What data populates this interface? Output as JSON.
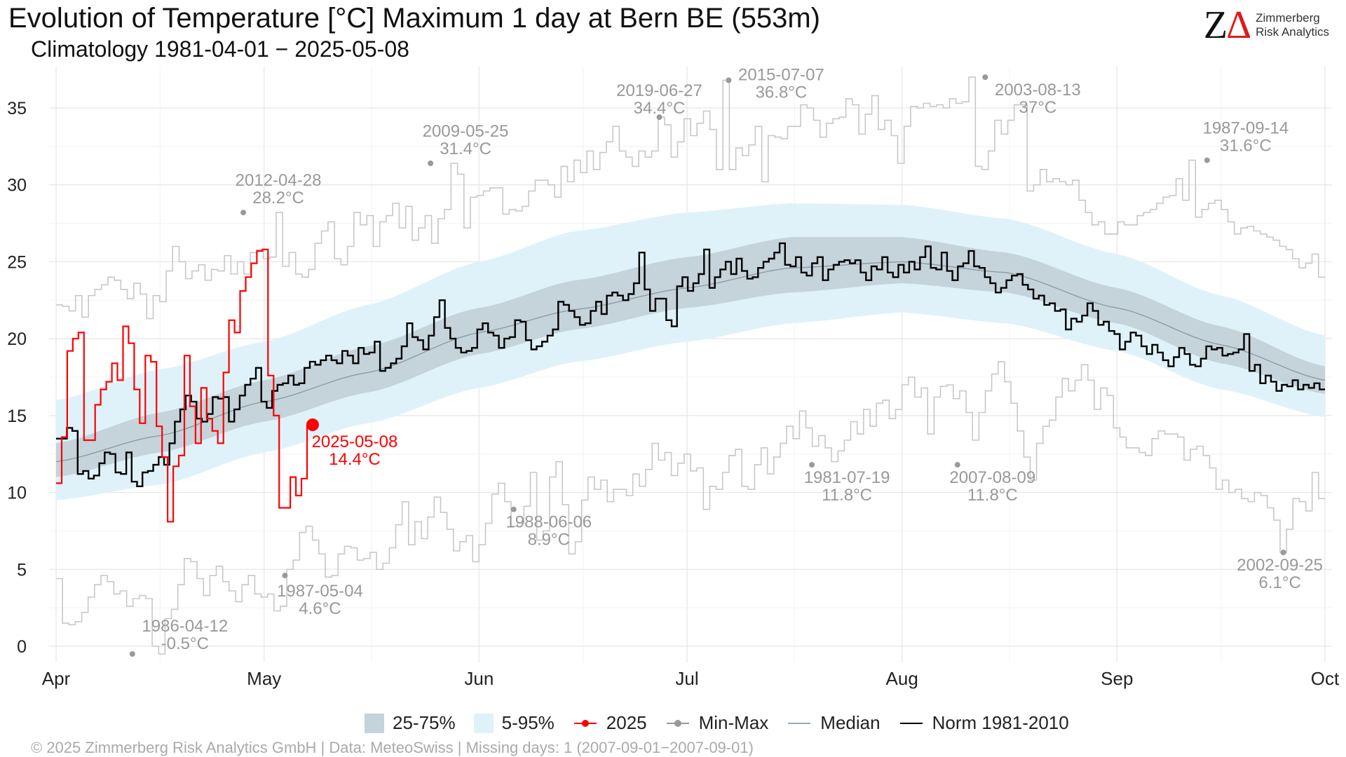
{
  "title": "Evolution of Temperature [°C] Maximum 1 day at Bern  BE (553m)",
  "subtitle": "Climatology 1981-04-01 − 2025-05-08",
  "logo": {
    "mark": "ZΔ",
    "line1": "Zimmerberg",
    "line2": "Risk Analytics"
  },
  "footer": "©  2025 Zimmerberg Risk Analytics GmbH | Data: MeteoSwiss | Missing days: 1 (2007-09-01−2007-09-01)",
  "legend": [
    {
      "label": "25-75%",
      "kind": "band",
      "color": "#c5d3da"
    },
    {
      "label": "5-95%",
      "kind": "band",
      "color": "#dff2f9"
    },
    {
      "label": "2025",
      "kind": "pointline",
      "color": "#ff0000"
    },
    {
      "label": "Min-Max",
      "kind": "pointline",
      "color": "#999999"
    },
    {
      "label": "Median",
      "kind": "line",
      "color": "#9aaab3"
    },
    {
      "label": "Norm 1981-2010",
      "kind": "line",
      "color": "#000000"
    }
  ],
  "colors": {
    "band_iqr": "#c5d3da",
    "band_90": "#dff2f9",
    "current": "#ff0000",
    "minmax": "#c8c8c8",
    "annot": "#999999",
    "norm": "#000000",
    "median": "#8c9ca4"
  },
  "chart_data": {
    "type": "line",
    "x_axis": {
      "ticks": [
        "Apr",
        "May",
        "Jun",
        "Jul",
        "Aug",
        "Sep",
        "Oct"
      ],
      "range": [
        "1981-04-01",
        "1981-10-01"
      ]
    },
    "y_axis": {
      "ticks": [
        0,
        5,
        10,
        15,
        20,
        25,
        30,
        35
      ],
      "ylim": [
        -1,
        37.5
      ]
    },
    "grid": true,
    "legend_position": "bottom",
    "median": [
      [
        0,
        12.0
      ],
      [
        15,
        13.7
      ],
      [
        30,
        15.9
      ],
      [
        45,
        17.8
      ],
      [
        61,
        20.4
      ],
      [
        75,
        21.9
      ],
      [
        91,
        23.3
      ],
      [
        106,
        24.6
      ],
      [
        122,
        25.0
      ],
      [
        137,
        24.3
      ],
      [
        153,
        22.0
      ],
      [
        168,
        19.6
      ],
      [
        183,
        17.3
      ]
    ],
    "band_25_75": {
      "upper": [
        [
          0,
          13.2
        ],
        [
          15,
          15.2
        ],
        [
          30,
          17.3
        ],
        [
          45,
          19.5
        ],
        [
          61,
          22.0
        ],
        [
          75,
          23.8
        ],
        [
          91,
          25.3
        ],
        [
          106,
          26.6
        ],
        [
          122,
          26.6
        ],
        [
          137,
          25.6
        ],
        [
          153,
          23.3
        ],
        [
          168,
          20.8
        ],
        [
          183,
          18.2
        ]
      ],
      "lower": [
        [
          0,
          11.0
        ],
        [
          15,
          12.6
        ],
        [
          30,
          14.6
        ],
        [
          45,
          16.5
        ],
        [
          61,
          19.0
        ],
        [
          75,
          20.6
        ],
        [
          91,
          22.0
        ],
        [
          106,
          23.0
        ],
        [
          122,
          23.6
        ],
        [
          137,
          23.0
        ],
        [
          153,
          21.0
        ],
        [
          168,
          18.4
        ],
        [
          183,
          16.4
        ]
      ]
    },
    "band_5_95": {
      "upper": [
        [
          0,
          16.0
        ],
        [
          15,
          18.0
        ],
        [
          30,
          19.8
        ],
        [
          45,
          22.2
        ],
        [
          61,
          25.0
        ],
        [
          75,
          27.0
        ],
        [
          91,
          28.2
        ],
        [
          106,
          28.8
        ],
        [
          122,
          28.7
        ],
        [
          137,
          27.8
        ],
        [
          153,
          25.5
        ],
        [
          168,
          22.8
        ],
        [
          183,
          20.2
        ]
      ],
      "lower": [
        [
          0,
          9.5
        ],
        [
          15,
          10.5
        ],
        [
          30,
          12.6
        ],
        [
          45,
          14.5
        ],
        [
          61,
          16.8
        ],
        [
          75,
          18.5
        ],
        [
          91,
          19.8
        ],
        [
          106,
          21.0
        ],
        [
          122,
          21.7
        ],
        [
          137,
          21.0
        ],
        [
          153,
          19.2
        ],
        [
          168,
          16.7
        ],
        [
          183,
          14.9
        ]
      ]
    },
    "series": [
      {
        "name": "2025",
        "values": [
          10.6,
          13.6,
          19.2,
          20.0,
          20.4,
          13.4,
          13.4,
          15.7,
          16.7,
          17.2,
          18.4,
          17.3,
          20.8,
          19.7,
          16.7,
          14.5,
          18.9,
          18.5,
          14.3,
          12.3,
          8.1,
          11.7,
          12.4,
          18.9,
          15.6,
          13.2,
          16.8,
          14.8,
          14.0,
          13.2,
          17.8,
          21.2,
          20.4,
          23.1,
          24.0,
          24.9,
          25.7,
          25.8,
          17.6,
          15.0,
          9.0,
          9.0,
          11.0,
          9.8,
          10.9,
          14.4
        ]
      },
      {
        "name": "Norm 1981-2010",
        "values": [
          13.5,
          13.5,
          14.2,
          14.0,
          11.2,
          11.4,
          10.9,
          11.1,
          11.9,
          12.6,
          12.5,
          11.3,
          11.2,
          12.6,
          10.7,
          10.4,
          11.3,
          11.4,
          11.8,
          12.3,
          11.8,
          13.2,
          14.6,
          15.4,
          16.3,
          15.9,
          14.8,
          14.6,
          15.1,
          16.2,
          16.1,
          16.2,
          14.6,
          15.4,
          16.3,
          17.0,
          17.4,
          18.1,
          15.9,
          15.5,
          16.6,
          17.0,
          17.1,
          17.6,
          17.0,
          17.1,
          18.1,
          18.5,
          18.3,
          18.6,
          18.9,
          18.6,
          18.4,
          19.2,
          18.9,
          18.4,
          19.4,
          19.0,
          19.1,
          19.8,
          17.9,
          18.1,
          18.4,
          18.7,
          19.5,
          21.0,
          20.1,
          19.9,
          19.3,
          20.2,
          21.4,
          22.5,
          20.7,
          20.0,
          19.4,
          19.1,
          19.2,
          19.4,
          20.6,
          21.0,
          20.4,
          20.2,
          19.4,
          20.0,
          20.1,
          21.2,
          21.1,
          19.9,
          19.3,
          19.5,
          19.8,
          20.2,
          20.6,
          22.4,
          22.2,
          21.8,
          21.4,
          20.9,
          21.0,
          21.8,
          22.4,
          21.6,
          22.8,
          23.0,
          22.8,
          22.5,
          22.9,
          23.6,
          25.6,
          23.2,
          21.8,
          22.6,
          22.6,
          21.2,
          20.8,
          23.4,
          24.0,
          23.1,
          23.6,
          24.2,
          25.8,
          23.3,
          24.0,
          24.5,
          25.0,
          24.2,
          25.2,
          24.4,
          23.9,
          24.0,
          24.6,
          25.0,
          25.2,
          25.6,
          26.2,
          24.8,
          24.7,
          25.3,
          24.3,
          24.1,
          24.9,
          25.3,
          23.8,
          24.5,
          24.8,
          25.0,
          25.1,
          24.9,
          25.1,
          24.3,
          23.8,
          24.7,
          24.5,
          25.3,
          24.3,
          24.0,
          24.8,
          24.3,
          25.0,
          24.5,
          25.3,
          26.0,
          24.6,
          24.5,
          25.6,
          24.4,
          23.8,
          24.7,
          24.9,
          25.7,
          24.7,
          24.6,
          24.0,
          23.6,
          23.0,
          23.3,
          23.8,
          24.1,
          24.2,
          23.5,
          23.2,
          22.6,
          22.8,
          22.2,
          22.3,
          21.8,
          21.9,
          20.6,
          21.3,
          21.1,
          21.5,
          22.3,
          21.8,
          20.9,
          21.1,
          20.5,
          20.3,
          19.3,
          19.8,
          20.4,
          20.2,
          19.5,
          19.0,
          19.6,
          19.1,
          18.6,
          18.2,
          18.8,
          19.4,
          19.0,
          18.3,
          18.2,
          18.7,
          19.5,
          19.3,
          19.4,
          18.9,
          19.0,
          19.1,
          19.3,
          20.3,
          17.9,
          18.3,
          17.1,
          17.6,
          17.2,
          16.6,
          17.0,
          16.9,
          17.3,
          16.7,
          17.0,
          16.8,
          17.1,
          16.7
        ]
      },
      {
        "name": "Max",
        "values": [
          22.2,
          22.1,
          21.8,
          22.8,
          21.4,
          22.8,
          23.2,
          23.5,
          24.0,
          23.8,
          23.2,
          22.6,
          23.6,
          22.9,
          21.3,
          22.8,
          22.4,
          24.4,
          26.0,
          25.0,
          23.9,
          24.4,
          24.8,
          23.8,
          24.5,
          24.4,
          25.4,
          24.2,
          25.0,
          24.2,
          25.6,
          25.8,
          25.2,
          25.3,
          28.2,
          24.7,
          25.6,
          24.2,
          24.0,
          24.5,
          26.2,
          27.0,
          27.6,
          25.2,
          24.8,
          26.0,
          28.2,
          27.4,
          28.0,
          26.0,
          27.6,
          28.0,
          28.8,
          27.2,
          28.6,
          26.4,
          27.2,
          28.0,
          26.2,
          27.8,
          28.4,
          31.4,
          30.7,
          27.2,
          29.2,
          29.3,
          29.6,
          29.8,
          29.8,
          28.1,
          28.4,
          28.3,
          28.6,
          29.6,
          30.3,
          30.3,
          30.0,
          29.2,
          31.2,
          30.2,
          31.6,
          30.8,
          32.2,
          31.0,
          32.1,
          32.8,
          33.8,
          32.2,
          31.8,
          31.2,
          32.2,
          31.8,
          32.2,
          34.4,
          33.9,
          31.8,
          32.8,
          34.3,
          33.2,
          34.0,
          34.8,
          33.6,
          31.0,
          36.8,
          31.0,
          32.4,
          31.9,
          32.6,
          33.8,
          30.2,
          33.2,
          33.1,
          33.0,
          33.8,
          33.8,
          35.2,
          35.0,
          34.2,
          33.1,
          34.0,
          34.3,
          34.4,
          35.6,
          35.2,
          33.3,
          34.6,
          35.8,
          33.6,
          34.2,
          33.2,
          31.4,
          33.8,
          35.1,
          35.0,
          35.3,
          35.1,
          35.2,
          35.0,
          35.6,
          35.3,
          35.4,
          37.0,
          31.2,
          31.0,
          32.2,
          34.2,
          33.3,
          34.2,
          35.2,
          35.2,
          29.6,
          30.0,
          31.0,
          30.2,
          30.4,
          30.2,
          30.0,
          30.3,
          29.0,
          28.2,
          27.4,
          27.6,
          26.8,
          26.8,
          27.6,
          27.4,
          27.4,
          28.0,
          28.2,
          28.4,
          28.8,
          29.2,
          29.3,
          30.4,
          29.0,
          31.6,
          27.9,
          28.4,
          28.8,
          29.0,
          28.4,
          27.6,
          26.8,
          27.2,
          27.3,
          27.0,
          26.8,
          26.6,
          26.4,
          26.0,
          25.8,
          25.2,
          24.6,
          24.9,
          25.5,
          24.0
        ]
      },
      {
        "name": "Min",
        "values": [
          4.4,
          1.5,
          1.4,
          1.6,
          2.2,
          3.2,
          4.0,
          4.6,
          4.2,
          3.4,
          3.6,
          2.6,
          3.1,
          3.3,
          3.1,
          0.0,
          -0.5,
          1.8,
          2.4,
          4.0,
          5.7,
          5.5,
          4.4,
          3.3,
          4.6,
          5.2,
          4.2,
          3.6,
          2.9,
          4.0,
          4.6,
          3.4,
          3.2,
          3.4,
          2.3,
          2.6,
          5.0,
          5.6,
          7.4,
          7.8,
          6.9,
          6.0,
          4.5,
          4.6,
          6.0,
          6.5,
          6.4,
          5.6,
          5.7,
          6.1,
          5.0,
          5.4,
          6.4,
          7.9,
          9.4,
          6.6,
          8.1,
          7.0,
          8.4,
          9.7,
          8.7,
          7.6,
          6.2,
          6.8,
          7.2,
          5.5,
          6.6,
          8.0,
          9.9,
          10.6,
          9.4,
          7.8,
          8.0,
          9.1,
          11.3,
          6.9,
          7.5,
          11.0,
          12.0,
          9.2,
          6.0,
          6.8,
          9.5,
          11.0,
          10.2,
          10.8,
          9.4,
          10.2,
          10.2,
          9.8,
          11.2,
          10.4,
          11.5,
          13.2,
          12.1,
          12.6,
          11.1,
          11.9,
          12.5,
          11.4,
          11.6,
          8.9,
          10.4,
          10.2,
          11.3,
          12.4,
          12.8,
          10.4,
          10.2,
          11.8,
          12.9,
          11.2,
          12.3,
          13.2,
          14.3,
          13.5,
          15.3,
          14.2,
          13.0,
          13.7,
          12.9,
          12.0,
          12.7,
          13.4,
          14.6,
          13.8,
          15.4,
          14.3,
          15.8,
          16.0,
          14.8,
          15.4,
          17.0,
          17.5,
          16.2,
          16.8,
          13.8,
          16.2,
          16.9,
          17.0,
          16.1,
          16.6,
          15.2,
          13.4,
          15.2,
          16.6,
          17.7,
          18.5,
          17.2,
          15.8,
          14.0,
          12.3,
          10.8,
          13.2,
          14.3,
          14.7,
          16.2,
          17.4,
          16.6,
          17.3,
          18.3,
          17.3,
          15.4,
          16.8,
          16.3,
          14.2,
          13.6,
          12.9,
          12.9,
          12.6,
          12.4,
          13.5,
          14.0,
          13.8,
          13.8,
          13.6,
          12.1,
          12.8,
          13.0,
          12.4,
          11.6,
          10.2,
          10.8,
          10.0,
          10.2,
          9.6,
          9.4,
          10.0,
          9.8,
          9.0,
          8.2,
          6.1,
          7.6,
          9.6,
          9.4,
          8.8,
          11.3,
          9.6
        ]
      }
    ],
    "current_point": {
      "date": "2025-05-08",
      "day": 37,
      "value": 14.4,
      "label_date": "2025-05-08",
      "label_value": "14.4°C"
    },
    "annotations": [
      {
        "kind": "max",
        "day": 27,
        "value": 28.2,
        "date": "2012-04-28",
        "text": "28.2°C"
      },
      {
        "kind": "max",
        "day": 54,
        "value": 31.4,
        "date": "2009-05-25",
        "text": "31.4°C"
      },
      {
        "kind": "max",
        "day": 87,
        "value": 34.4,
        "date": "2019-06-27",
        "text": "34.4°C"
      },
      {
        "kind": "max",
        "day": 97,
        "value": 36.8,
        "date": "2015-07-07",
        "text": "36.8°C"
      },
      {
        "kind": "max",
        "day": 134,
        "value": 37.0,
        "date": "2003-08-13",
        "text": "37°C"
      },
      {
        "kind": "max",
        "day": 166,
        "value": 31.6,
        "date": "1987-09-14",
        "text": "31.6°C"
      },
      {
        "kind": "min",
        "day": 11,
        "value": -0.5,
        "date": "1986-04-12",
        "text": "-0.5°C"
      },
      {
        "kind": "min",
        "day": 33,
        "value": 4.6,
        "date": "1987-05-04",
        "text": "4.6°C"
      },
      {
        "kind": "min",
        "day": 66,
        "value": 8.9,
        "date": "1988-06-06",
        "text": "8.9°C"
      },
      {
        "kind": "min",
        "day": 109,
        "value": 11.8,
        "date": "1981-07-19",
        "text": "11.8°C"
      },
      {
        "kind": "min",
        "day": 130,
        "value": 11.8,
        "date": "2007-08-09",
        "text": "11.8°C"
      },
      {
        "kind": "min",
        "day": 177,
        "value": 6.1,
        "date": "2002-09-25",
        "text": "6.1°C"
      }
    ]
  }
}
